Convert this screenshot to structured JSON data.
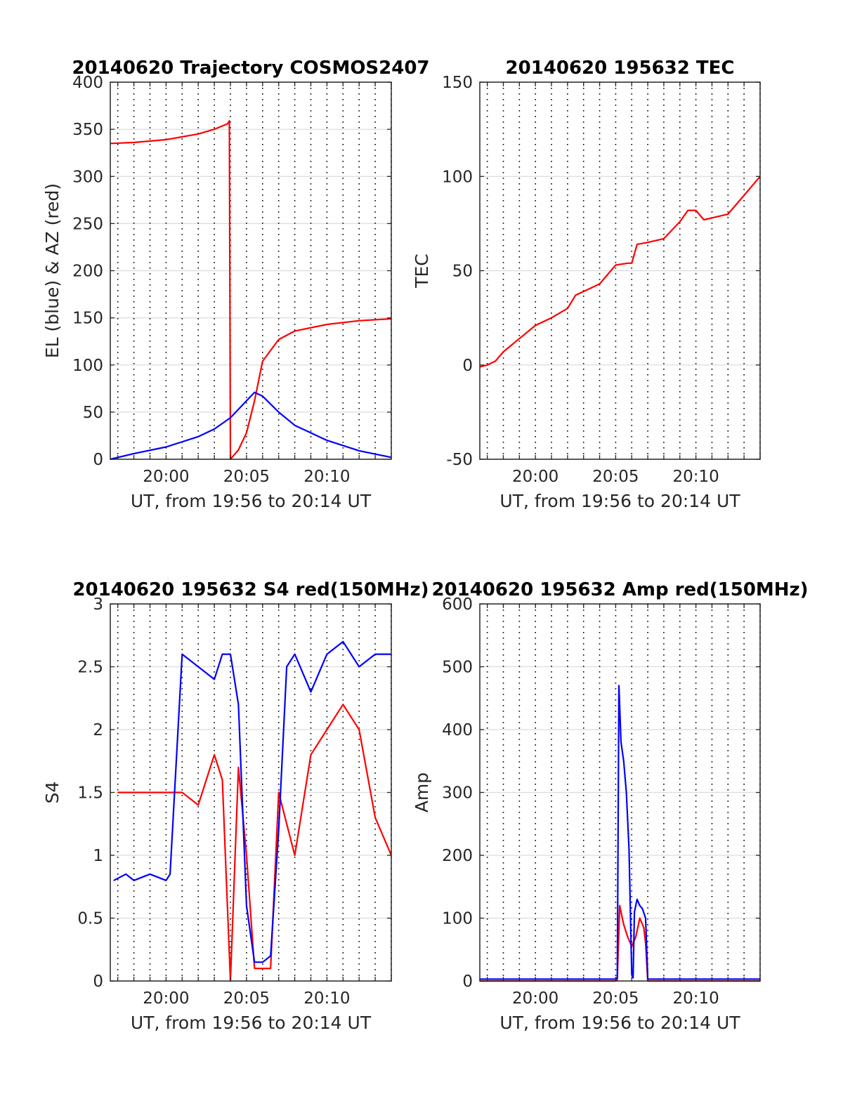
{
  "colors": {
    "az": "#ff0000",
    "el": "#0000ff",
    "red": "#ff0000",
    "blue": "#0000ff"
  },
  "chart_data": [
    {
      "type": "line",
      "title": "20140620 Trajectory COSMOS2407",
      "xlabel": "UT, from 19:56 to 20:14 UT",
      "ylabel": "EL (blue) & AZ (red)",
      "xlim": [
        "19:56:32",
        "20:14:00"
      ],
      "ylim": [
        0,
        400
      ],
      "yticks": [
        "0",
        "50",
        "100",
        "150",
        "200",
        "250",
        "300",
        "350",
        "400"
      ],
      "xticks": [
        "20:00",
        "20:05",
        "20:10"
      ],
      "grid": true,
      "series": [
        {
          "color": "red",
          "x": [
            "19:56:32",
            "19:58:00",
            "20:00:00",
            "20:02:00",
            "20:03:00",
            "20:03:50",
            "20:03:56",
            "20:04:00",
            "20:04:30",
            "20:05:00",
            "20:05:30",
            "20:06:00",
            "20:07:00",
            "20:08:00",
            "20:10:00",
            "20:12:00",
            "20:14:00"
          ],
          "y": [
            335,
            336,
            339,
            345,
            350,
            356,
            359,
            0,
            10,
            28,
            62,
            104,
            127,
            136,
            143,
            147,
            149
          ]
        },
        {
          "color": "blue",
          "x": [
            "19:56:32",
            "19:58:00",
            "20:00:00",
            "20:02:00",
            "20:03:00",
            "20:04:00",
            "20:05:00",
            "20:05:30",
            "20:06:00",
            "20:07:00",
            "20:08:00",
            "20:10:00",
            "20:12:00",
            "20:14:00"
          ],
          "y": [
            0,
            6,
            13,
            24,
            32,
            44,
            62,
            71,
            67,
            50,
            36,
            20,
            9,
            2
          ]
        }
      ]
    },
    {
      "type": "line",
      "title": "20140620 195632 TEC",
      "xlabel": "UT, from 19:56 to 20:14 UT",
      "ylabel": "TEC",
      "xlim": [
        "19:56:32",
        "20:14:00"
      ],
      "ylim": [
        -50,
        150
      ],
      "yticks": [
        "-50",
        "0",
        "50",
        "100",
        "150"
      ],
      "xticks": [
        "20:00",
        "20:05",
        "20:10"
      ],
      "grid": true,
      "series": [
        {
          "color": "red",
          "x": [
            "19:56:32",
            "19:57:00",
            "19:57:30",
            "19:58:00",
            "19:59:00",
            "20:00:00",
            "20:01:00",
            "20:02:00",
            "20:02:30",
            "20:03:30",
            "20:04:00",
            "20:04:30",
            "20:05:00",
            "20:05:45",
            "20:06:00",
            "20:06:20",
            "20:07:00",
            "20:08:00",
            "20:09:00",
            "20:09:30",
            "20:10:00",
            "20:10:30",
            "20:11:00",
            "20:12:00",
            "20:13:00",
            "20:14:00"
          ],
          "y": [
            -1,
            0,
            2,
            7,
            14,
            21,
            25,
            30,
            37,
            41,
            43,
            48,
            53,
            54,
            54,
            64,
            65,
            67,
            76,
            82,
            82,
            77,
            78,
            80,
            90,
            100
          ]
        }
      ]
    },
    {
      "type": "line",
      "title": "20140620 195632 S4 red(150MHz)",
      "xlabel": "UT, from 19:56 to 20:14 UT",
      "ylabel": "S4",
      "xlim": [
        "19:56:32",
        "20:14:00"
      ],
      "ylim": [
        0,
        3
      ],
      "yticks": [
        "0",
        "0.5",
        "1",
        "1.5",
        "2",
        "2.5",
        "3"
      ],
      "xticks": [
        "20:00",
        "20:05",
        "20:10"
      ],
      "grid": true,
      "series": [
        {
          "color": "red",
          "x": [
            "19:57:00",
            "19:58:00",
            "19:59:00",
            "20:00:00",
            "20:01:00",
            "20:02:00",
            "20:03:00",
            "20:03:30",
            "20:04:00",
            "20:04:30",
            "20:05:00",
            "20:05:30",
            "20:06:00",
            "20:06:30",
            "20:07:00",
            "20:08:00",
            "20:09:00",
            "20:10:00",
            "20:11:00",
            "20:12:00",
            "20:13:00",
            "20:14:00"
          ],
          "y": [
            1.5,
            1.5,
            1.5,
            1.5,
            1.5,
            1.4,
            1.8,
            1.6,
            0.0,
            1.7,
            1.0,
            0.1,
            0.1,
            0.1,
            1.5,
            1.0,
            1.8,
            2.0,
            2.2,
            2.0,
            1.3,
            1.0
          ]
        },
        {
          "color": "blue",
          "x": [
            "19:56:45",
            "19:57:30",
            "19:58:00",
            "19:59:00",
            "20:00:00",
            "20:00:15",
            "20:01:00",
            "20:02:00",
            "20:03:00",
            "20:03:30",
            "20:04:00",
            "20:04:30",
            "20:05:00",
            "20:05:30",
            "20:06:00",
            "20:06:30",
            "20:07:00",
            "20:07:30",
            "20:08:00",
            "20:09:00",
            "20:10:00",
            "20:11:00",
            "20:12:00",
            "20:13:00",
            "20:14:00"
          ],
          "y": [
            0.8,
            0.85,
            0.8,
            0.85,
            0.8,
            0.85,
            2.6,
            2.5,
            2.4,
            2.6,
            2.6,
            2.2,
            0.6,
            0.15,
            0.15,
            0.2,
            1.2,
            2.5,
            2.6,
            2.3,
            2.6,
            2.7,
            2.5,
            2.6,
            2.6
          ]
        }
      ]
    },
    {
      "type": "line",
      "title": "20140620 195632 Amp red(150MHz)",
      "xlabel": "UT, from 19:56 to 20:14 UT",
      "ylabel": "Amp",
      "xlim": [
        "19:56:32",
        "20:14:00"
      ],
      "ylim": [
        0,
        600
      ],
      "yticks": [
        "0",
        "100",
        "200",
        "300",
        "400",
        "500",
        "600"
      ],
      "xticks": [
        "20:00",
        "20:05",
        "20:10"
      ],
      "grid": true,
      "series": [
        {
          "color": "red",
          "x": [
            "19:56:32",
            "20:05:00",
            "20:05:06",
            "20:05:15",
            "20:05:30",
            "20:05:45",
            "20:06:00",
            "20:06:15",
            "20:06:30",
            "20:06:45",
            "20:06:52",
            "20:07:00",
            "20:14:00"
          ],
          "y": [
            0,
            0,
            2,
            120,
            90,
            70,
            55,
            70,
            100,
            85,
            60,
            0,
            0
          ]
        },
        {
          "color": "blue",
          "x": [
            "19:56:32",
            "20:05:00",
            "20:05:06",
            "20:05:12",
            "20:05:20",
            "20:05:30",
            "20:05:40",
            "20:05:50",
            "20:06:00",
            "20:06:05",
            "20:06:10",
            "20:06:20",
            "20:06:30",
            "20:06:40",
            "20:06:52",
            "20:07:00",
            "20:14:00"
          ],
          "y": [
            3,
            3,
            5,
            470,
            380,
            350,
            300,
            210,
            10,
            5,
            110,
            130,
            120,
            115,
            100,
            3,
            3
          ]
        }
      ]
    }
  ]
}
